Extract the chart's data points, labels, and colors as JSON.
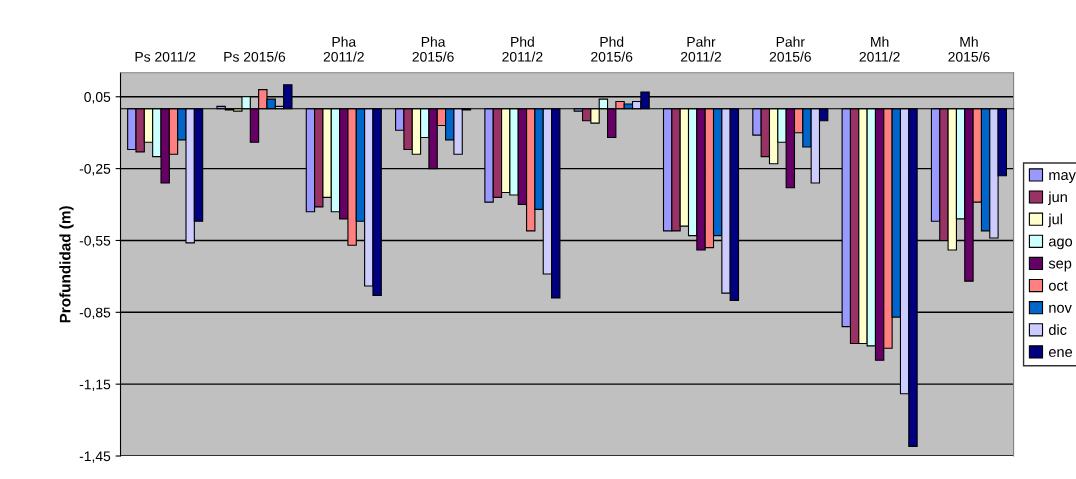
{
  "chart_data": {
    "type": "bar",
    "ylabel": "Profundidad (m)",
    "categories": [
      "Ps 2011/2",
      "Ps 2015/6",
      "Pha\n2011/2",
      "Pha\n2015/6",
      "Phd\n2011/2",
      "Phd\n2015/6",
      "Pahr\n2011/2",
      "Pahr\n2015/6",
      "Mh\n2011/2",
      "Mh\n2015/6"
    ],
    "series": [
      {
        "name": "may",
        "color": "#9999ff",
        "values": [
          -0.17,
          0.01,
          -0.43,
          -0.09,
          -0.39,
          -0.01,
          -0.51,
          -0.11,
          -0.91,
          -0.47
        ]
      },
      {
        "name": "jun",
        "color": "#993366",
        "values": [
          -0.18,
          -0.005,
          -0.41,
          -0.17,
          -0.37,
          -0.05,
          -0.51,
          -0.2,
          -0.98,
          -0.55
        ]
      },
      {
        "name": "jul",
        "color": "#ffffcc",
        "values": [
          -0.14,
          -0.01,
          -0.37,
          -0.19,
          -0.35,
          -0.06,
          -0.49,
          -0.23,
          -0.98,
          -0.59
        ]
      },
      {
        "name": "ago",
        "color": "#ccffff",
        "values": [
          -0.2,
          0.05,
          -0.43,
          -0.12,
          -0.36,
          0.04,
          -0.53,
          -0.14,
          -0.99,
          -0.46
        ]
      },
      {
        "name": "sep",
        "color": "#660066",
        "values": [
          -0.31,
          -0.14,
          -0.46,
          -0.25,
          -0.4,
          -0.12,
          -0.59,
          -0.33,
          -1.05,
          -0.72
        ]
      },
      {
        "name": "oct",
        "color": "#ff8080",
        "values": [
          -0.19,
          0.08,
          -0.57,
          -0.07,
          -0.51,
          0.03,
          -0.58,
          -0.1,
          -1.0,
          -0.39
        ]
      },
      {
        "name": "nov",
        "color": "#0066cc",
        "values": [
          -0.13,
          0.04,
          -0.47,
          -0.13,
          -0.42,
          0.02,
          -0.53,
          -0.16,
          -0.87,
          -0.51
        ]
      },
      {
        "name": "dic",
        "color": "#ccccff",
        "values": [
          -0.56,
          0.01,
          -0.74,
          -0.19,
          -0.69,
          0.03,
          -0.77,
          -0.31,
          -1.19,
          -0.54
        ]
      },
      {
        "name": "ene",
        "color": "#000080",
        "values": [
          -0.47,
          0.1,
          -0.78,
          -0.005,
          -0.79,
          0.07,
          -0.8,
          -0.05,
          -1.41,
          -0.28
        ]
      }
    ],
    "ylim": [
      -1.45,
      0.15
    ],
    "yticks": [
      {
        "value": 0.05,
        "label": "0,05"
      },
      {
        "value": -0.25,
        "label": "-0,25"
      },
      {
        "value": -0.55,
        "label": "-0,55"
      },
      {
        "value": -0.85,
        "label": "-0,85"
      },
      {
        "value": -1.15,
        "label": "-1,15"
      },
      {
        "value": -1.45,
        "label": "-1,45"
      }
    ],
    "grid": "y",
    "legend": "right"
  }
}
